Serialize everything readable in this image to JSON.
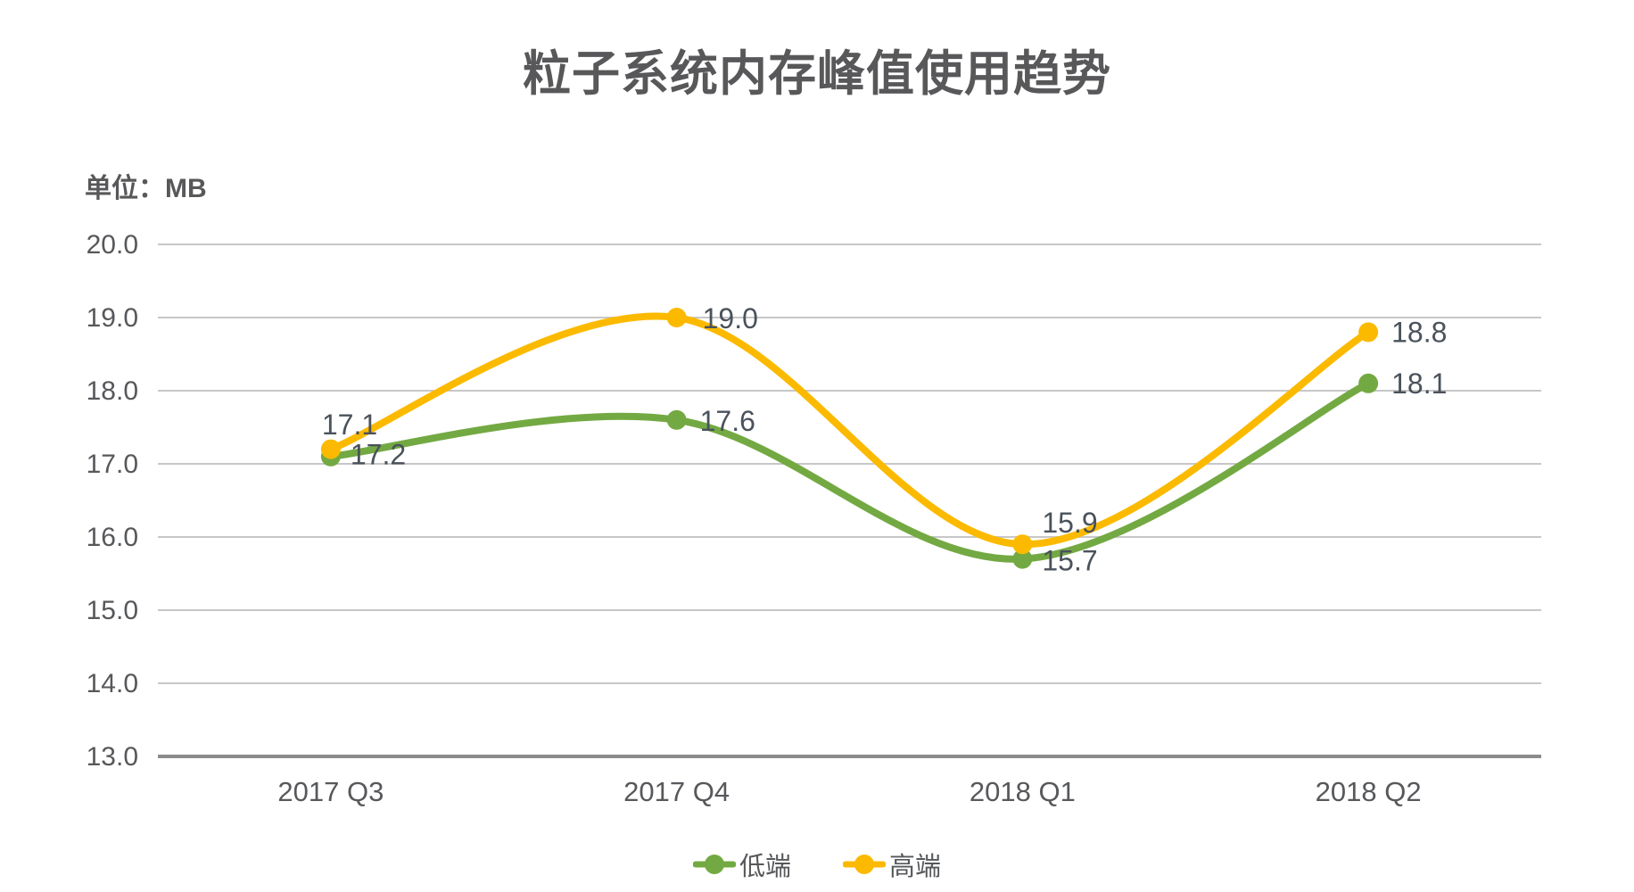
{
  "chart_data": {
    "type": "line",
    "title": "粒子系统内存峰值使用趋势",
    "unit_label": "单位：MB",
    "categories": [
      "2017 Q3",
      "2017 Q4",
      "2018 Q1",
      "2018 Q2"
    ],
    "series": [
      {
        "name": "低端",
        "color": "#73A942",
        "values": [
          17.1,
          17.6,
          15.7,
          18.1
        ],
        "point_labels": [
          "17.1",
          "17.6",
          "15.7",
          "18.1"
        ]
      },
      {
        "name": "高端",
        "color": "#FBBA00",
        "values": [
          17.2,
          19.0,
          15.9,
          18.8
        ],
        "point_labels": [
          "17.2",
          "19.0",
          "15.9",
          "18.8"
        ]
      }
    ],
    "ylim": [
      13.0,
      20.0
    ],
    "ytick_step": 1.0,
    "ytick_labels_top_to_bottom": [
      "20.0",
      "19.0",
      "18.0",
      "17.0",
      "16.0",
      "15.0",
      "14.0",
      "13.0"
    ],
    "grid": "horizontal-only",
    "line_style": "smooth",
    "legend_position": "bottom-center",
    "colors": {
      "title_text": "#58585A",
      "axis_text": "#56585B",
      "data_label_text": "#4A525B",
      "gridline": "#C7C7C7",
      "axis_line": "#8C8C8C",
      "background": "#FFFFFF"
    }
  }
}
